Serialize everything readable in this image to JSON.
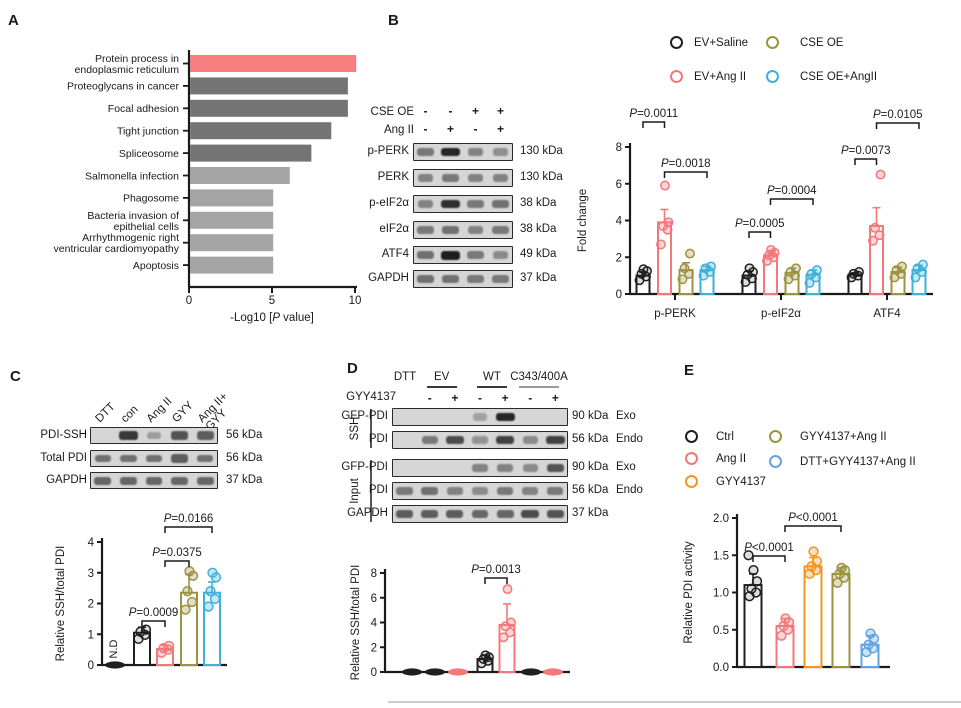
{
  "colors": {
    "black": "#1f1f1f",
    "pink": "#F4787A",
    "olive": "#9C9340",
    "cyan": "#3FB1D8",
    "orange": "#F7941E",
    "lightblue": "#63A3E2",
    "highlight": "#F87E80",
    "grayDark": "#747474",
    "grayLight": "#A4A4A4"
  },
  "panelA": {
    "label": "A",
    "chart_data": {
      "type": "bar",
      "orientation": "horizontal",
      "categories": [
        "Protein process in\nendoplasmic reticulum",
        "Proteoglycans in cancer",
        "Focal adhesion",
        "Tight junction",
        "Spliceosome",
        "Salmonella infection",
        "Phagosome",
        "Bacteria invasion of\nepithelial cells",
        "Arrhythmogenic right\nventricular cardiomyopathy",
        "Apoptosis"
      ],
      "values": [
        10,
        9.5,
        9.5,
        8.5,
        7.3,
        6,
        5,
        5,
        5,
        5
      ],
      "bar_colors": [
        "highlight",
        "grayDark",
        "grayDark",
        "grayDark",
        "grayDark",
        "grayLight",
        "grayLight",
        "grayLight",
        "grayLight",
        "grayLight"
      ],
      "xlabel": "-Log10 [P value]",
      "xticks": [
        "0",
        "5",
        "10"
      ],
      "xlim": [
        0,
        10
      ]
    }
  },
  "panelB": {
    "label": "B",
    "blot": {
      "conditions": [
        {
          "label": "CSE OE",
          "signs": [
            "-",
            "-",
            "+",
            "+"
          ]
        },
        {
          "label": "Ang II",
          "signs": [
            "-",
            "+",
            "-",
            "+"
          ]
        }
      ],
      "rows": [
        {
          "label": "p-PERK",
          "kda": "130 kDa",
          "bands": [
            0.5,
            0.95,
            0.45,
            0.38
          ]
        },
        {
          "label": "PERK",
          "kda": "130 kDa",
          "bands": [
            0.45,
            0.5,
            0.45,
            0.45
          ]
        },
        {
          "label": "p-eIF2α",
          "kda": "38 kDa",
          "bands": [
            0.45,
            0.9,
            0.5,
            0.55
          ]
        },
        {
          "label": "eIF2α",
          "kda": "38 kDa",
          "bands": [
            0.5,
            0.55,
            0.45,
            0.5
          ]
        },
        {
          "label": "ATF4",
          "kda": "49 kDa",
          "bands": [
            0.55,
            1.0,
            0.5,
            0.4
          ]
        },
        {
          "label": "GAPDH",
          "kda": "37 kDa",
          "bands": [
            0.55,
            0.55,
            0.5,
            0.5
          ]
        }
      ]
    },
    "legend": [
      {
        "label": "EV+Saline",
        "color": "black"
      },
      {
        "label": "EV+Ang II",
        "color": "pink"
      },
      {
        "label": "CSE OE",
        "color": "olive"
      },
      {
        "label": "CSE OE+AngII",
        "color": "cyan"
      }
    ],
    "chart_data": {
      "type": "bar",
      "ylabel": "Fold change",
      "yticks": [
        "0",
        "2",
        "4",
        "6",
        "8"
      ],
      "ylim": [
        0,
        8
      ],
      "categories": [
        "p-PERK",
        "p-eIF2α",
        "ATF4"
      ],
      "series": [
        {
          "name": "EV+Saline",
          "color": "black",
          "values": [
            1.0,
            1.0,
            1.05
          ],
          "errors": [
            0.2,
            0.25,
            0.1
          ],
          "dots": [
            [
              0.75,
              0.95,
              1.1,
              1.25,
              1.35
            ],
            [
              0.65,
              0.85,
              1.05,
              1.2,
              1.4
            ],
            [
              0.9,
              1.0,
              1.1,
              1.2
            ]
          ]
        },
        {
          "name": "EV+Ang II",
          "color": "pink",
          "values": [
            3.9,
            2.1,
            3.7
          ],
          "errors": [
            0.7,
            0.25,
            1.0
          ],
          "dots": [
            [
              2.7,
              3.5,
              3.7,
              3.9,
              5.9
            ],
            [
              1.8,
              2.0,
              2.1,
              2.25,
              2.4
            ],
            [
              2.9,
              3.2,
              3.6,
              6.5
            ]
          ]
        },
        {
          "name": "CSE OE",
          "color": "olive",
          "values": [
            1.3,
            1.15,
            1.2
          ],
          "errors": [
            0.4,
            0.25,
            0.25
          ],
          "dots": [
            [
              0.8,
              1.1,
              1.4,
              2.2
            ],
            [
              0.8,
              1.0,
              1.2,
              1.4
            ],
            [
              0.9,
              1.1,
              1.3,
              1.5
            ]
          ]
        },
        {
          "name": "CSE OE+AngII",
          "color": "cyan",
          "values": [
            1.3,
            1.05,
            1.3
          ],
          "errors": [
            0.2,
            0.25,
            0.25
          ],
          "dots": [
            [
              1.0,
              1.2,
              1.4,
              1.5
            ],
            [
              0.6,
              0.9,
              1.1,
              1.3
            ],
            [
              0.9,
              1.2,
              1.4,
              1.6
            ]
          ]
        }
      ],
      "significance": [
        {
          "text": "P=0.0011",
          "bars": [
            0,
            1
          ]
        },
        {
          "text": "P=0.0018",
          "bars": [
            1,
            3
          ]
        },
        {
          "text": "P=0.0005",
          "bars": [
            4,
            5
          ]
        },
        {
          "text": "P=0.0004",
          "bars": [
            5,
            7
          ]
        },
        {
          "text": "P=0.0073",
          "bars": [
            8,
            9
          ]
        },
        {
          "text": "P=0.0105",
          "bars": [
            9,
            11
          ]
        }
      ]
    }
  },
  "panelC": {
    "label": "C",
    "blot": {
      "lanes": [
        "DTT",
        "con",
        "Ang II",
        "GYY",
        "Ang II+\nGYY"
      ],
      "rows": [
        {
          "label": "PDI-SSH",
          "kda": "56 kDa",
          "bands": [
            0,
            0.85,
            0.3,
            0.7,
            0.65
          ]
        },
        {
          "label": "Total PDI",
          "kda": "56 kDa",
          "bands": [
            0.55,
            0.55,
            0.55,
            0.65,
            0.55
          ]
        },
        {
          "label": "GAPDH",
          "kda": "37 kDa",
          "bands": [
            0.6,
            0.6,
            0.6,
            0.6,
            0.6
          ]
        }
      ]
    },
    "chart_data": {
      "type": "bar",
      "ylabel": "Relative SSH/total PDI",
      "yticks": [
        "0",
        "1",
        "2",
        "3",
        "4"
      ],
      "ylim": [
        0,
        4
      ],
      "categories": [
        "DTT",
        "con",
        "Ang II",
        "GYY",
        "Ang II+GYY"
      ],
      "bar_colors": [
        "black",
        "black",
        "pink",
        "olive",
        "cyan"
      ],
      "values": [
        0,
        1.05,
        0.52,
        2.35,
        2.35
      ],
      "errors": [
        0,
        0.18,
        0.12,
        0.6,
        0.35
      ],
      "dots": [
        [],
        [
          0.85,
          0.98,
          1.08,
          1.15
        ],
        [
          0.4,
          0.5,
          0.55,
          0.62
        ],
        [
          1.8,
          2.05,
          2.4,
          2.9,
          3.05
        ],
        [
          1.9,
          2.15,
          2.4,
          2.85,
          3.0
        ]
      ],
      "nd_markers": [
        0
      ],
      "annotations": [
        "N.D"
      ],
      "significance": [
        {
          "text": "P=0.0009",
          "bars": [
            1,
            2
          ]
        },
        {
          "text": "P=0.0375",
          "bars": [
            2,
            3
          ]
        },
        {
          "text": "P=0.0166",
          "bars": [
            2,
            4
          ]
        }
      ]
    }
  },
  "panelD": {
    "label": "D",
    "blot": {
      "top_groups": [
        "DTT",
        "EV",
        "WT",
        "C343/400A"
      ],
      "treatment": {
        "label": "GYY4137",
        "signs": [
          "-",
          "+",
          "-",
          "+",
          "-",
          "+"
        ]
      },
      "side_groups": [
        "SSH",
        "Input"
      ],
      "rows": [
        {
          "label": "GFP-PDI",
          "kda": "90 kDa",
          "suffix": "Exo",
          "bands": [
            0,
            0,
            0,
            0.28,
            0.95,
            0,
            0
          ]
        },
        {
          "label": "PDI",
          "kda": "56 kDa",
          "suffix": "Endo",
          "bands": [
            0,
            0.5,
            0.75,
            0.35,
            0.8,
            0.4,
            0.8
          ]
        },
        {
          "label": "GFP-PDI",
          "kda": "90 kDa",
          "suffix": "Exo",
          "bands": [
            0,
            0,
            0,
            0.45,
            0.45,
            0.4,
            0.7
          ]
        },
        {
          "label": "PDI",
          "kda": "56 kDa",
          "suffix": "Endo",
          "bands": [
            0.5,
            0.55,
            0.45,
            0.4,
            0.5,
            0.45,
            0.5
          ]
        },
        {
          "label": "GAPDH",
          "kda": "37 kDa",
          "suffix": "",
          "bands": [
            0.65,
            0.65,
            0.65,
            0.6,
            0.6,
            0.75,
            0.7
          ]
        }
      ]
    },
    "chart_data": {
      "type": "bar",
      "ylabel": "Relative SSH/total PDI",
      "yticks": [
        "0",
        "2",
        "4",
        "6",
        "8"
      ],
      "ylim": [
        0,
        8
      ],
      "categories": [
        "DTT",
        "EV -GYY4137",
        "EV +GYY4137",
        "WT -GYY4137",
        "WT +GYY4137",
        "C343/400A -GYY4137",
        "C343/400A +GYY4137"
      ],
      "bar_colors": [
        "black",
        "black",
        "pink",
        "black",
        "pink",
        "black",
        "pink"
      ],
      "values": [
        0,
        0,
        0,
        1.05,
        3.8,
        0,
        0
      ],
      "errors": [
        0,
        0,
        0,
        0.3,
        1.7,
        0,
        0
      ],
      "dots": [
        [],
        [],
        [],
        [
          0.7,
          0.9,
          1.05,
          1.2,
          1.35
        ],
        [
          2.8,
          3.2,
          3.7,
          4.0,
          6.7
        ],
        [],
        []
      ],
      "nd_markers": [
        0,
        1,
        2,
        5,
        6
      ],
      "significance": [
        {
          "text": "P=0.0013",
          "bars": [
            3,
            4
          ]
        }
      ]
    }
  },
  "panelE": {
    "label": "E",
    "legend": [
      {
        "label": "Ctrl",
        "color": "black"
      },
      {
        "label": "Ang II",
        "color": "pink"
      },
      {
        "label": "GYY4137",
        "color": "orange"
      },
      {
        "label": "GYY4137+Ang II",
        "color": "olive"
      },
      {
        "label": "DTT+GYY4137+Ang II",
        "color": "lightblue"
      }
    ],
    "chart_data": {
      "type": "bar",
      "ylabel": "Relative PDI activity",
      "yticks": [
        "0.0",
        "0.5",
        "1.0",
        "1.5",
        "2.0"
      ],
      "ylim": [
        0,
        2
      ],
      "categories": [
        "Ctrl",
        "Ang II",
        "GYY4137",
        "GYY4137+Ang II",
        "DTT+GYY4137+Ang II"
      ],
      "bar_colors": [
        "black",
        "pink",
        "orange",
        "olive",
        "lightblue"
      ],
      "values": [
        1.1,
        0.55,
        1.35,
        1.25,
        0.3
      ],
      "errors": [
        0.15,
        0.1,
        0.12,
        0.08,
        0.12
      ],
      "dots": [
        [
          0.95,
          1.0,
          1.05,
          1.15,
          1.3,
          1.5
        ],
        [
          0.42,
          0.5,
          0.55,
          0.6,
          0.65
        ],
        [
          1.25,
          1.3,
          1.35,
          1.42,
          1.55
        ],
        [
          1.13,
          1.2,
          1.25,
          1.3,
          1.33
        ],
        [
          0.2,
          0.25,
          0.3,
          0.38,
          0.45
        ]
      ],
      "significance": [
        {
          "text": "P<0.0001",
          "bars": [
            0,
            1
          ]
        },
        {
          "text": "P<0.0001",
          "bars": [
            1,
            3
          ]
        }
      ]
    }
  }
}
